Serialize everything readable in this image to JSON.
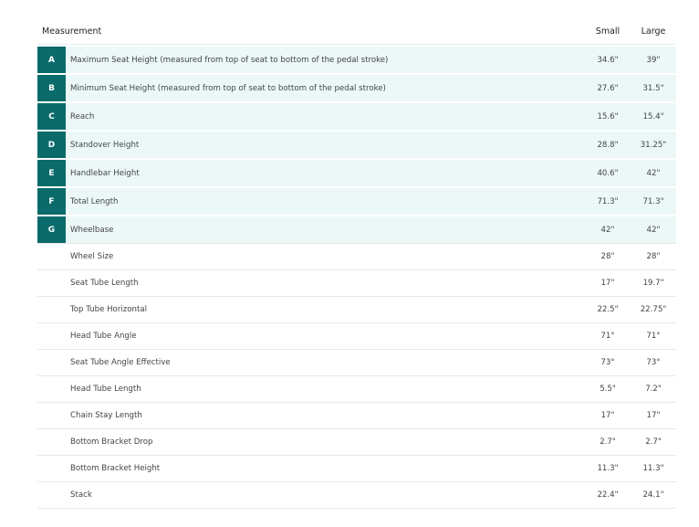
{
  "colors": {
    "accent": "#0b6b6b",
    "highlight_row": "#ecf8f8"
  },
  "header": {
    "measurement": "Measurement",
    "small": "Small",
    "large": "Large"
  },
  "rows": [
    {
      "letter": "A",
      "name": "Maximum Seat Height (measured from top of seat to bottom of the pedal stroke)",
      "small": "34.6\"",
      "large": "39\""
    },
    {
      "letter": "B",
      "name": "Minimum Seat Height (measured from top of seat to bottom of the pedal stroke)",
      "small": "27.6\"",
      "large": "31.5\""
    },
    {
      "letter": "C",
      "name": "Reach",
      "small": "15.6\"",
      "large": "15.4\""
    },
    {
      "letter": "D",
      "name": "Standover Height",
      "small": "28.8\"",
      "large": "31.25\""
    },
    {
      "letter": "E",
      "name": "Handlebar Height",
      "small": "40.6\"",
      "large": "42\""
    },
    {
      "letter": "F",
      "name": "Total Length",
      "small": "71.3\"",
      "large": "71.3\""
    },
    {
      "letter": "G",
      "name": "Wheelbase",
      "small": "42\"",
      "large": "42\""
    },
    {
      "letter": "",
      "name": "Wheel Size",
      "small": "28\"",
      "large": "28\""
    },
    {
      "letter": "",
      "name": "Seat Tube Length",
      "small": "17\"",
      "large": "19.7\""
    },
    {
      "letter": "",
      "name": "Top Tube Horizontal",
      "small": "22.5\"",
      "large": "22.75\""
    },
    {
      "letter": "",
      "name": "Head Tube Angle",
      "small": "71°",
      "large": "71°"
    },
    {
      "letter": "",
      "name": "Seat Tube Angle Effective",
      "small": "73°",
      "large": "73°"
    },
    {
      "letter": "",
      "name": "Head Tube Length",
      "small": "5.5\"",
      "large": "7.2\""
    },
    {
      "letter": "",
      "name": "Chain Stay Length",
      "small": "17\"",
      "large": "17\""
    },
    {
      "letter": "",
      "name": "Bottom Bracket Drop",
      "small": "2.7\"",
      "large": "2.7\""
    },
    {
      "letter": "",
      "name": "Bottom Bracket Height",
      "small": "11.3\"",
      "large": "11.3\""
    },
    {
      "letter": "",
      "name": "Stack",
      "small": "22.4\"",
      "large": "24.1\""
    }
  ]
}
